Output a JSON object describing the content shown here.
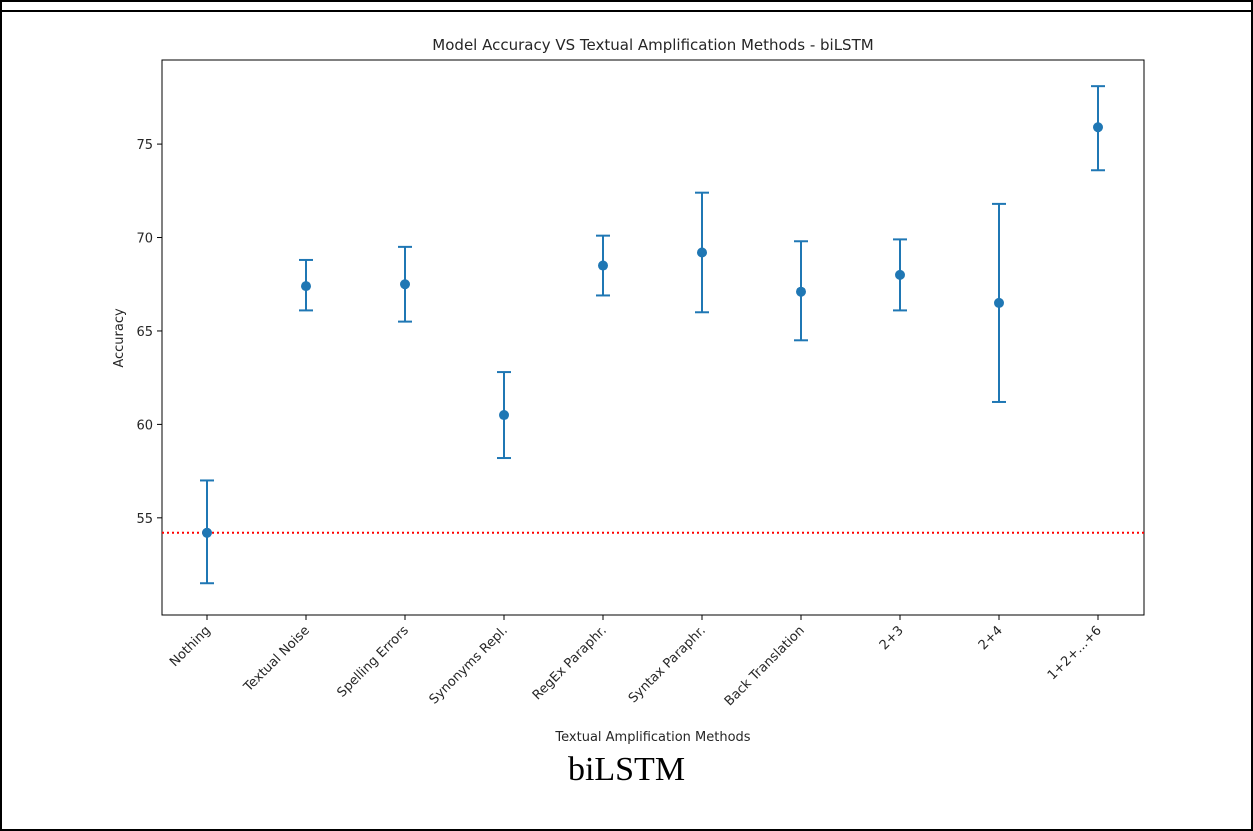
{
  "caption": "biLSTM",
  "chart_data": {
    "type": "scatter",
    "title": "Model Accuracy VS Textual Amplification Methods - biLSTM",
    "xlabel": "Textual Amplification Methods",
    "ylabel": "Accuracy",
    "categories": [
      "Nothing",
      "Textual Noise",
      "Spelling Errors",
      "Synonyms Repl.",
      "RegEx Paraphr.",
      "Syntax Paraphr.",
      "Back Translation",
      "2+3",
      "2+4",
      "1+2+...+6"
    ],
    "series": [
      {
        "values": [
          54.2,
          67.4,
          67.5,
          60.5,
          68.5,
          69.2,
          67.1,
          68.0,
          66.5,
          75.9
        ],
        "error_low": [
          51.5,
          66.1,
          65.5,
          58.2,
          66.9,
          66.0,
          64.5,
          66.1,
          61.2,
          73.6
        ],
        "error_high": [
          57.0,
          68.8,
          69.5,
          62.8,
          70.1,
          72.4,
          69.8,
          69.9,
          71.8,
          78.1
        ]
      }
    ],
    "reference_line": {
      "y": 54.2,
      "style": "dotted",
      "color": "#ff0000"
    },
    "yticks": [
      55,
      60,
      65,
      70,
      75
    ],
    "ylim": [
      49.8,
      79.5
    ],
    "grid": false,
    "marker_color": "#1f77b4"
  }
}
